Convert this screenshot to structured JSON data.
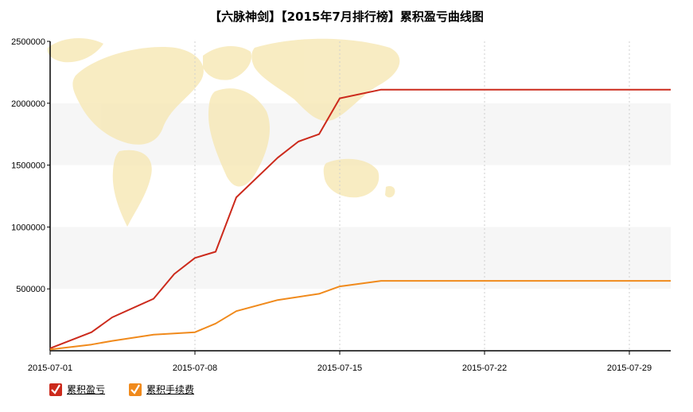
{
  "title": "【六脉神剑】【2015年7月排行榜】累积盈亏曲线图",
  "legend": [
    {
      "label": "累积盈亏",
      "color": "#cc2a1c"
    },
    {
      "label": "累积手续费",
      "color": "#f08a1c"
    }
  ],
  "chart_data": {
    "type": "line",
    "title": "【六脉神剑】【2015年7月排行榜】累积盈亏曲线图",
    "x_ticks": [
      "2015-07-01",
      "2015-07-08",
      "2015-07-15",
      "2015-07-22",
      "2015-07-29"
    ],
    "y_ticks": [
      "500000",
      "1000000",
      "1500000",
      "2000000",
      "2500000"
    ],
    "ylim": [
      0,
      2500000
    ],
    "xlim": [
      "2015-07-01",
      "2015-07-31"
    ],
    "grid": "vertical dotted lines, alternating horizontal bands",
    "legend_position": "bottom-left",
    "series": [
      {
        "name": "累积盈亏",
        "color": "#cc2a1c",
        "points": [
          {
            "x": "2015-07-01",
            "y": 20000
          },
          {
            "x": "2015-07-03",
            "y": 150000
          },
          {
            "x": "2015-07-04",
            "y": 270000
          },
          {
            "x": "2015-07-06",
            "y": 420000
          },
          {
            "x": "2015-07-07",
            "y": 620000
          },
          {
            "x": "2015-07-08",
            "y": 750000
          },
          {
            "x": "2015-07-09",
            "y": 800000
          },
          {
            "x": "2015-07-10",
            "y": 1240000
          },
          {
            "x": "2015-07-12",
            "y": 1560000
          },
          {
            "x": "2015-07-13",
            "y": 1690000
          },
          {
            "x": "2015-07-14",
            "y": 1750000
          },
          {
            "x": "2015-07-15",
            "y": 2040000
          },
          {
            "x": "2015-07-17",
            "y": 2110000
          },
          {
            "x": "2015-07-31",
            "y": 2110000
          }
        ]
      },
      {
        "name": "累积手续费",
        "color": "#f08a1c",
        "points": [
          {
            "x": "2015-07-01",
            "y": 10000
          },
          {
            "x": "2015-07-03",
            "y": 50000
          },
          {
            "x": "2015-07-04",
            "y": 80000
          },
          {
            "x": "2015-07-06",
            "y": 130000
          },
          {
            "x": "2015-07-07",
            "y": 140000
          },
          {
            "x": "2015-07-08",
            "y": 150000
          },
          {
            "x": "2015-07-09",
            "y": 220000
          },
          {
            "x": "2015-07-10",
            "y": 320000
          },
          {
            "x": "2015-07-12",
            "y": 410000
          },
          {
            "x": "2015-07-14",
            "y": 460000
          },
          {
            "x": "2015-07-15",
            "y": 520000
          },
          {
            "x": "2015-07-17",
            "y": 565000
          },
          {
            "x": "2015-07-31",
            "y": 565000
          }
        ]
      }
    ]
  }
}
